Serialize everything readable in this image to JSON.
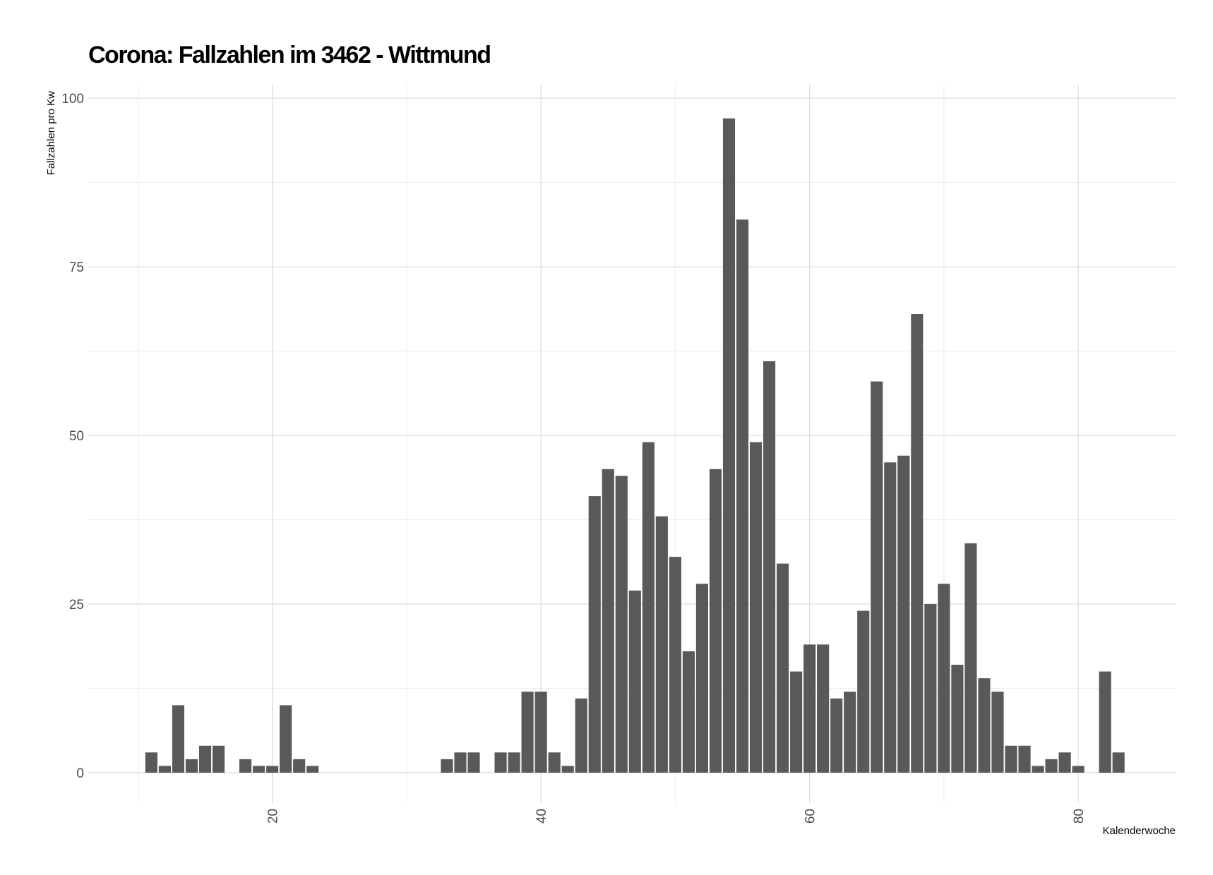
{
  "chart_data": {
    "type": "bar",
    "title": "Corona: Fallzahlen im 3462 - Wittmund",
    "xlabel": "Kalenderwoche",
    "ylabel": "Fallzahlen pro Kw",
    "x": [
      11,
      12,
      13,
      14,
      15,
      16,
      18,
      19,
      20,
      21,
      22,
      23,
      33,
      34,
      35,
      37,
      38,
      39,
      40,
      41,
      42,
      43,
      44,
      45,
      46,
      47,
      48,
      49,
      50,
      51,
      52,
      53,
      54,
      55,
      56,
      57,
      58,
      59,
      60,
      61,
      62,
      63,
      64,
      65,
      66,
      67,
      68,
      69,
      70,
      71,
      72,
      73,
      74,
      75,
      76,
      77,
      78,
      79,
      80,
      82,
      83
    ],
    "values": [
      3,
      1,
      10,
      2,
      4,
      4,
      2,
      1,
      1,
      10,
      2,
      1,
      2,
      3,
      3,
      3,
      3,
      12,
      12,
      3,
      1,
      11,
      41,
      45,
      44,
      27,
      49,
      38,
      32,
      18,
      28,
      45,
      97,
      82,
      49,
      61,
      31,
      15,
      19,
      19,
      11,
      12,
      24,
      58,
      46,
      47,
      68,
      25,
      28,
      16,
      34,
      14,
      12,
      4,
      4,
      1,
      2,
      3,
      1,
      15,
      3
    ],
    "xlim": [
      6.3,
      87.3
    ],
    "ylim": [
      -4.5,
      102
    ],
    "x_ticks": [
      "20",
      "40",
      "60",
      "80"
    ],
    "y_ticks": [
      "0",
      "25",
      "50",
      "75",
      "100"
    ],
    "grid": true,
    "bar_color": "#595959"
  }
}
